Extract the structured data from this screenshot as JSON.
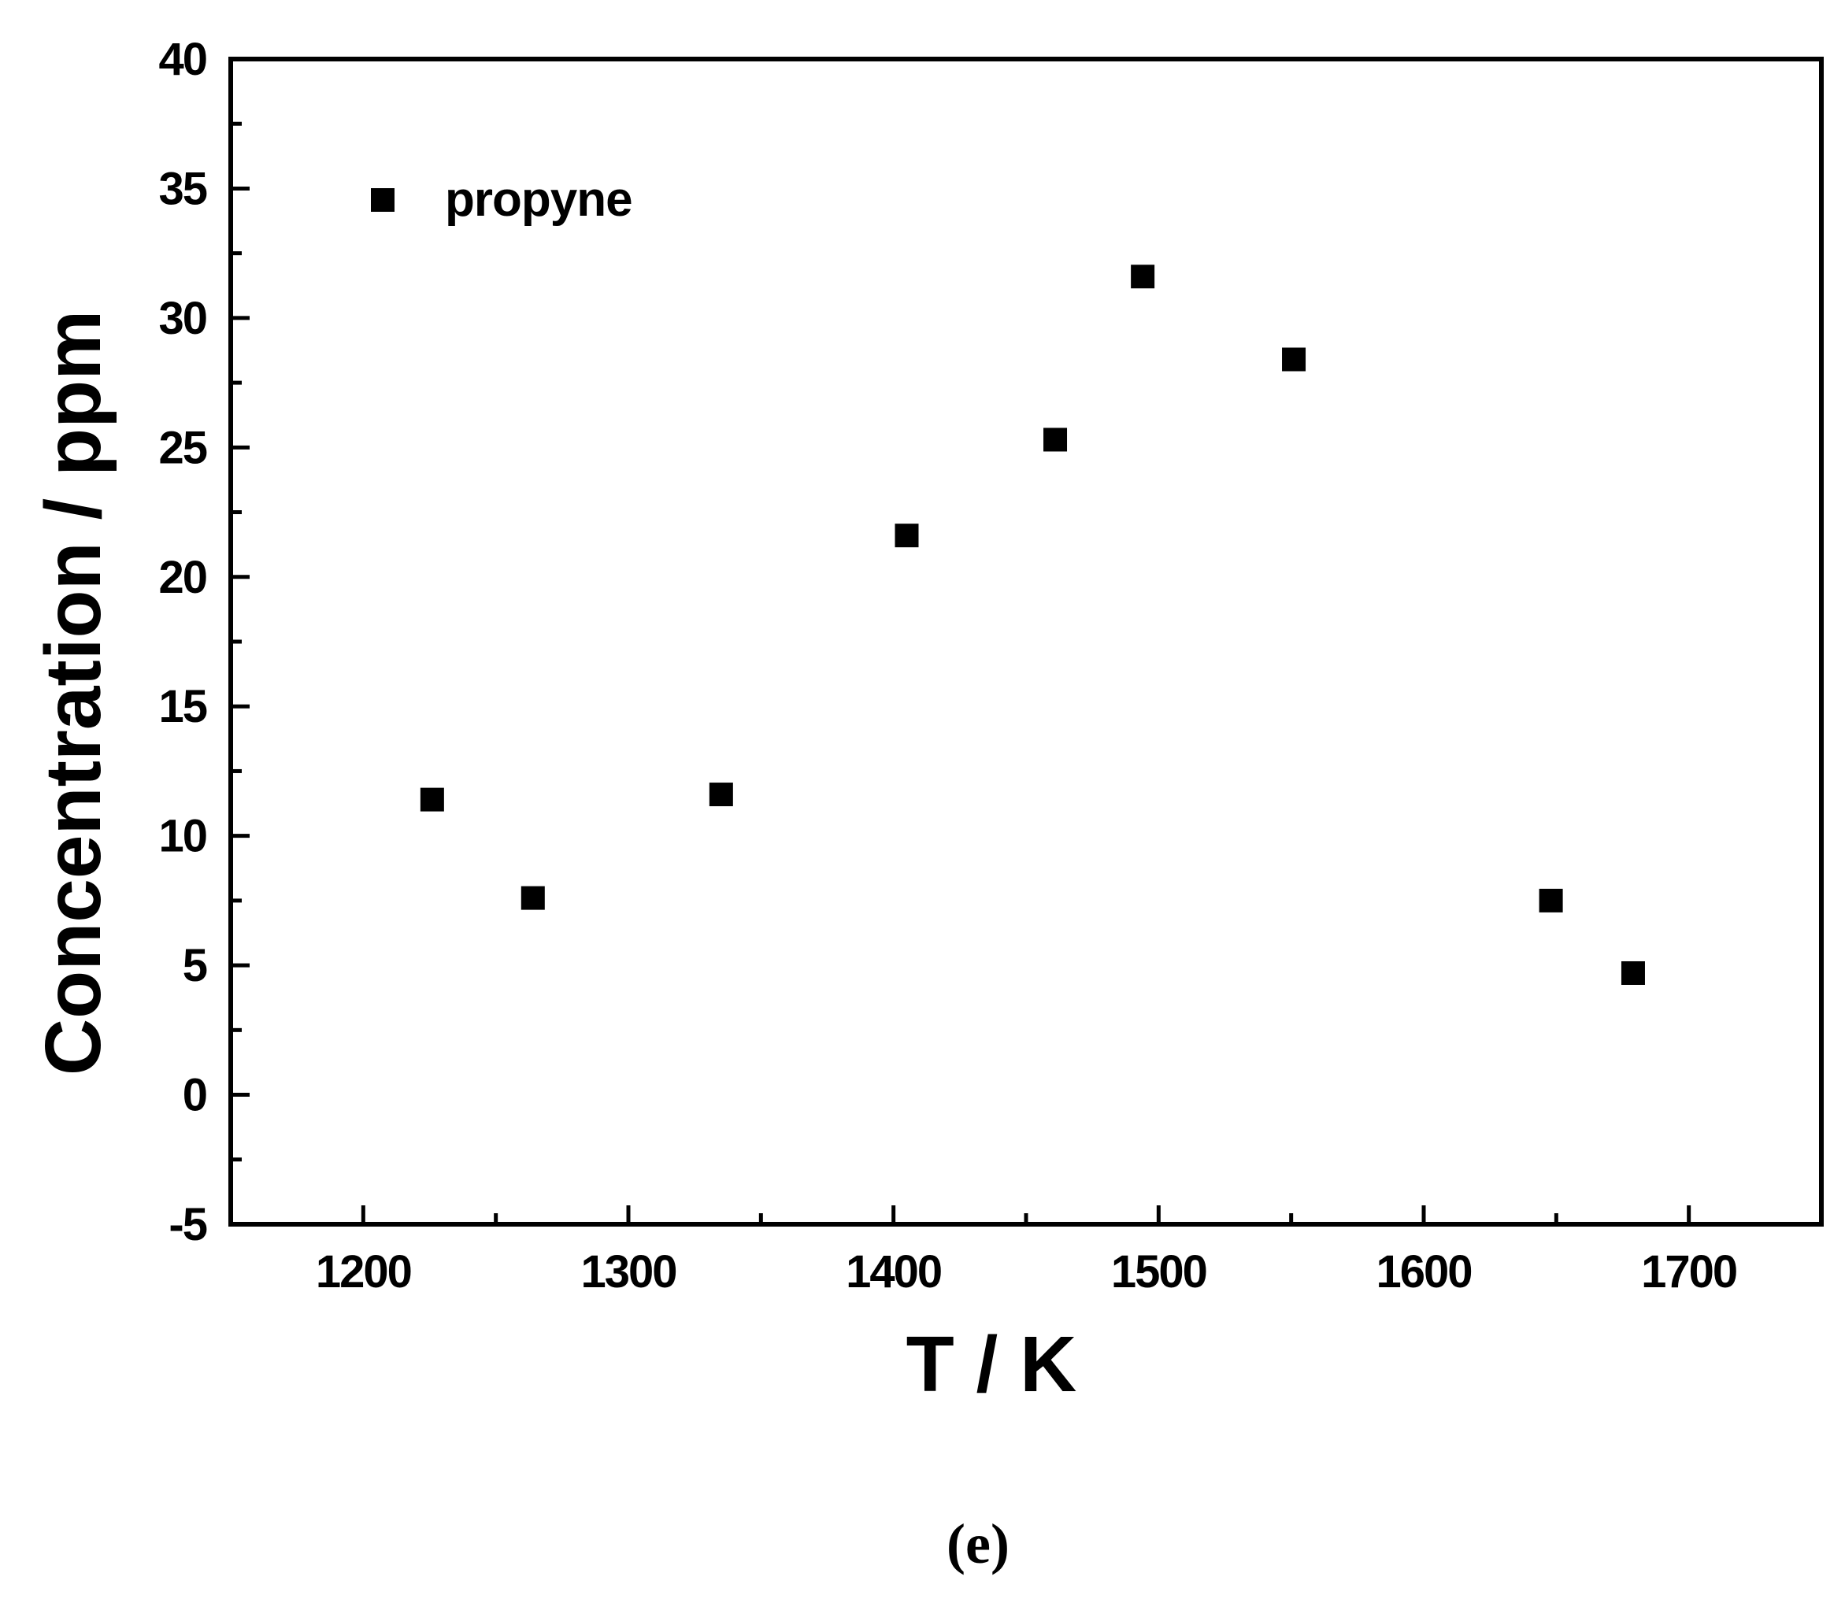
{
  "chart_data": {
    "type": "scatter",
    "xlabel": "T / K",
    "ylabel": "Concentration / ppm",
    "xlim": [
      1150,
      1750
    ],
    "ylim": [
      -5,
      40
    ],
    "x_ticks": [
      1200,
      1300,
      1400,
      1500,
      1600,
      1700
    ],
    "x_minor_ticks": [
      1250,
      1350,
      1450,
      1550,
      1650
    ],
    "y_ticks": [
      -5,
      0,
      5,
      10,
      15,
      20,
      25,
      30,
      35,
      40
    ],
    "y_minor_ticks": [
      -2.5,
      2.5,
      7.5,
      12.5,
      17.5,
      22.5,
      27.5,
      32.5,
      37.5
    ],
    "grid": false,
    "legend_position": "top-left",
    "series": [
      {
        "name": "propyne",
        "marker": "square",
        "color": "#000000",
        "x": [
          1226,
          1264,
          1335,
          1405,
          1461,
          1494,
          1551,
          1648,
          1679
        ],
        "y": [
          11.4,
          7.6,
          11.6,
          21.6,
          25.3,
          31.6,
          28.4,
          7.5,
          4.7
        ]
      }
    ]
  },
  "caption": "(e)"
}
